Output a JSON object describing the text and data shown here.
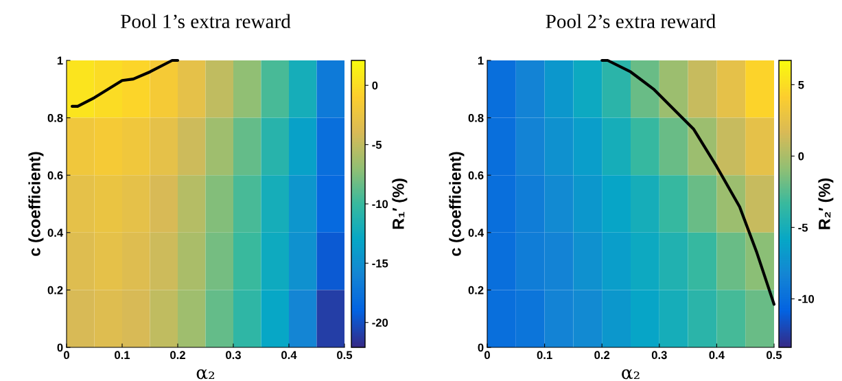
{
  "chart_data": [
    {
      "type": "heatmap",
      "title": "Pool 1’s extra reward",
      "xlabel": "α₂",
      "ylabel": "c (coefficient)",
      "clabel": "R₁′ (%)",
      "x": [
        0.025,
        0.075,
        0.125,
        0.175,
        0.225,
        0.275,
        0.325,
        0.375,
        0.425,
        0.475
      ],
      "cells": [
        [
          0.5,
          0,
          -0.5,
          -1.5,
          -3,
          -5,
          -7,
          -9.5,
          -12,
          -17
        ],
        [
          -2,
          -1.5,
          -2,
          -3,
          -4.5,
          -6.5,
          -8.5,
          -11,
          -13.5,
          -18
        ],
        [
          -3,
          -2.5,
          -3,
          -4,
          -5.5,
          -7.5,
          -9.5,
          -12,
          -14.5,
          -18.5
        ],
        [
          -3.5,
          -3,
          -3.5,
          -4.5,
          -6,
          -8,
          -10,
          -12.5,
          -15,
          -19.5
        ],
        [
          -4,
          -3.5,
          -4,
          -5,
          -6.5,
          -8.5,
          -10.5,
          -13,
          -16,
          -21
        ]
      ],
      "clim": [
        -22.1,
        2.1
      ],
      "cticks": [
        0,
        -5,
        -10,
        -15,
        -20
      ],
      "xlim": [
        0,
        0.5
      ],
      "ylim": [
        0,
        1
      ],
      "xticks": [
        0,
        0.1,
        0.2,
        0.3,
        0.4,
        0.5
      ],
      "yticks": [
        0,
        0.2,
        0.4,
        0.6,
        0.8,
        1
      ],
      "series": [
        {
          "type": "line",
          "color": "#000000",
          "x": [
            0.01,
            0.02,
            0.05,
            0.1,
            0.12,
            0.15,
            0.19,
            0.2
          ],
          "values": [
            0.84,
            0.84,
            0.87,
            0.93,
            0.935,
            0.96,
            1.0,
            1.0
          ]
        }
      ]
    },
    {
      "type": "heatmap",
      "title": "Pool 2’s extra reward",
      "xlabel": "α₂",
      "ylabel": "c (coefficient)",
      "clabel": "R₂′ (%)",
      "x": [
        0.025,
        0.075,
        0.125,
        0.175,
        0.225,
        0.275,
        0.325,
        0.375,
        0.425,
        0.475
      ],
      "cells": [
        [
          -10,
          -8.5,
          -7,
          -5.5,
          -4,
          -2,
          -0.5,
          1,
          2.5,
          4.5
        ],
        [
          -10,
          -8.5,
          -7.5,
          -6.5,
          -5,
          -3.5,
          -2,
          -0.5,
          1,
          2.5
        ],
        [
          -10,
          -9,
          -8,
          -7,
          -6,
          -5,
          -3.5,
          -2,
          -0.5,
          1
        ],
        [
          -10,
          -9,
          -8.5,
          -7.5,
          -6.5,
          -5.5,
          -4.5,
          -3.5,
          -2,
          -1
        ],
        [
          -10,
          -9.5,
          -8.5,
          -8,
          -7,
          -6,
          -5,
          -4,
          -3,
          -2
        ]
      ],
      "clim": [
        -13.4,
        6.7
      ],
      "cticks": [
        5,
        0,
        -5,
        -10
      ],
      "xlim": [
        0,
        0.5
      ],
      "ylim": [
        0,
        1
      ],
      "xticks": [
        0,
        0.1,
        0.2,
        0.3,
        0.4,
        0.5
      ],
      "yticks": [
        0,
        0.2,
        0.4,
        0.6,
        0.8,
        1
      ],
      "series": [
        {
          "type": "line",
          "color": "#000000",
          "x": [
            0.2,
            0.21,
            0.25,
            0.27,
            0.29,
            0.33,
            0.36,
            0.4,
            0.44,
            0.47,
            0.5
          ],
          "values": [
            1.0,
            1.0,
            0.96,
            0.93,
            0.9,
            0.82,
            0.76,
            0.63,
            0.49,
            0.33,
            0.15
          ]
        }
      ]
    }
  ]
}
